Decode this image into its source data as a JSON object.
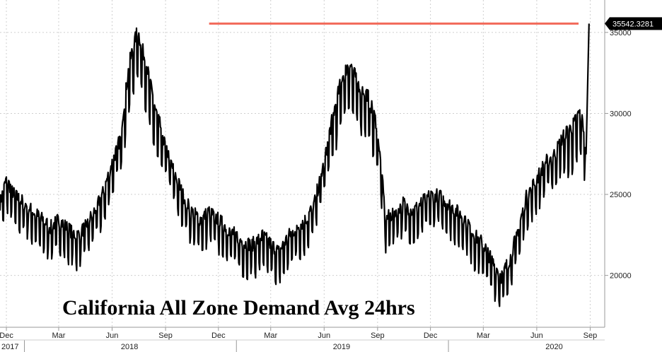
{
  "chart_data": {
    "type": "line",
    "title": "California All Zone Demand Avg 24hrs",
    "xlabel": "",
    "ylabel": "",
    "y_range": [
      16800,
      37000
    ],
    "y_ticks": [
      20000,
      25000,
      30000
    ],
    "y_tick_labels": [
      "20000",
      "25000",
      "30000"
    ],
    "partial_tick_label": "35000",
    "last_value": 35542.3281,
    "last_value_label": "35542.3281",
    "line_color": "#000000",
    "reference_line": {
      "value": 35542.3281,
      "color": "#f26a5a",
      "from": "2018-11-15",
      "to": "2020-08-12"
    },
    "x_range": [
      "2017-11-20",
      "2020-09-26"
    ],
    "month_ticks": [
      {
        "date": "2017-12-01",
        "label": "Dec"
      },
      {
        "date": "2018-03-01",
        "label": "Mar"
      },
      {
        "date": "2018-06-01",
        "label": "Jun"
      },
      {
        "date": "2018-09-01",
        "label": "Sep"
      },
      {
        "date": "2018-12-01",
        "label": "Dec"
      },
      {
        "date": "2019-03-01",
        "label": "Mar"
      },
      {
        "date": "2019-06-01",
        "label": "Jun"
      },
      {
        "date": "2019-09-01",
        "label": "Sep"
      },
      {
        "date": "2019-12-01",
        "label": "Dec"
      },
      {
        "date": "2020-03-01",
        "label": "Mar"
      },
      {
        "date": "2020-06-01",
        "label": "Jun"
      },
      {
        "date": "2020-09-01",
        "label": "Sep"
      }
    ],
    "year_labels": [
      {
        "date": "2017-11-20",
        "label": "2017"
      },
      {
        "date": "2018-07-01",
        "label": "2018"
      },
      {
        "date": "2019-07-01",
        "label": "2019"
      },
      {
        "date": "2020-07-01",
        "label": "2020"
      }
    ],
    "series": [
      {
        "x": [
          "2017-11-20",
          "2017-12-01",
          "2017-12-15",
          "2018-01-01",
          "2018-01-15",
          "2018-02-01",
          "2018-02-15",
          "2018-03-01",
          "2018-03-15",
          "2018-04-01",
          "2018-04-15",
          "2018-05-01",
          "2018-05-15",
          "2018-06-01",
          "2018-06-15",
          "2018-07-01",
          "2018-07-15",
          "2018-08-01",
          "2018-08-15",
          "2018-09-01",
          "2018-09-15",
          "2018-10-01",
          "2018-10-15",
          "2018-11-01",
          "2018-11-15",
          "2018-12-01",
          "2018-12-15",
          "2019-01-01",
          "2019-01-15",
          "2019-02-01",
          "2019-02-15",
          "2019-03-01",
          "2019-03-15",
          "2019-04-01",
          "2019-04-15",
          "2019-05-01",
          "2019-05-15",
          "2019-06-01",
          "2019-06-15",
          "2019-07-01",
          "2019-07-15",
          "2019-08-01",
          "2019-08-15",
          "2019-09-01",
          "2019-09-15",
          "2019-10-01",
          "2019-10-15",
          "2019-11-01",
          "2019-11-15",
          "2019-12-01",
          "2019-12-15",
          "2020-01-01",
          "2020-01-15",
          "2020-02-01",
          "2020-02-15",
          "2020-03-01",
          "2020-03-15",
          "2020-04-01",
          "2020-04-15",
          "2020-05-01",
          "2020-05-15",
          "2020-06-01",
          "2020-06-15",
          "2020-07-01",
          "2020-07-15",
          "2020-08-01",
          "2020-08-15",
          "2020-08-25",
          "2020-08-30"
        ],
        "values": [
          24000,
          25500,
          24500,
          24000,
          23500,
          23000,
          22500,
          23000,
          22500,
          22000,
          22500,
          23500,
          24500,
          26500,
          28000,
          32500,
          34500,
          32000,
          29500,
          27500,
          26000,
          24500,
          23500,
          23000,
          23500,
          23000,
          22500,
          22000,
          21500,
          21500,
          22000,
          21500,
          21000,
          22000,
          22500,
          23000,
          24000,
          26500,
          29000,
          31500,
          32500,
          31000,
          30500,
          28500,
          23000,
          23500,
          24000,
          23500,
          24000,
          24500,
          24500,
          24000,
          23500,
          23000,
          22000,
          21500,
          20500,
          19500,
          20500,
          22500,
          24500,
          25500,
          26500,
          27000,
          28000,
          28500,
          29500,
          27500,
          35542.3281
        ]
      }
    ]
  }
}
